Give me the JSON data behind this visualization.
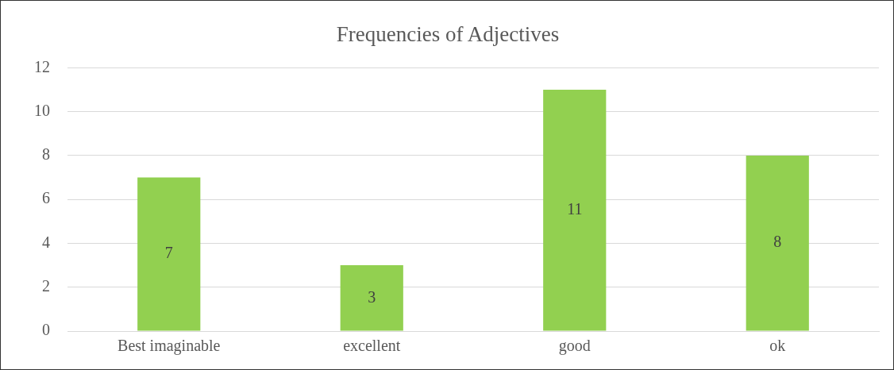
{
  "chart_data": {
    "type": "bar",
    "title": "Frequencies of Adjectives",
    "categories": [
      "Best imaginable",
      "excellent",
      "good",
      "ok"
    ],
    "values": [
      7,
      3,
      11,
      8
    ],
    "color": "#92d050",
    "ylim": [
      0,
      12
    ],
    "yticks": [
      0,
      2,
      4,
      6,
      8,
      10,
      12
    ],
    "grid": "y",
    "data_labels": true
  }
}
